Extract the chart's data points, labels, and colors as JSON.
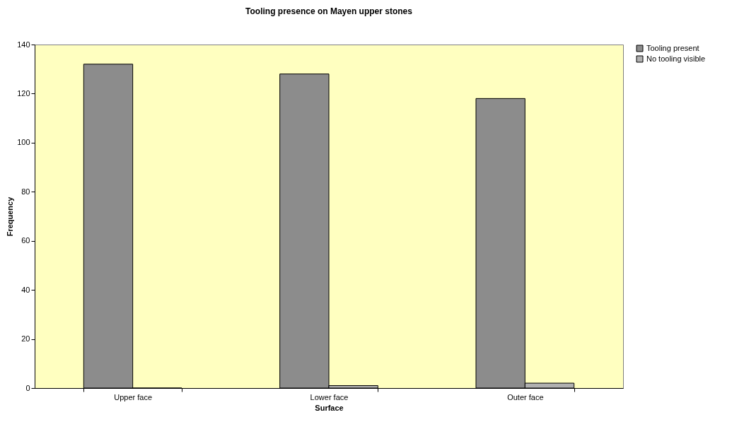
{
  "chart_data": {
    "type": "bar",
    "title": "Tooling presence on Mayen upper stones",
    "xlabel": "Surface",
    "ylabel": "Frequency",
    "categories": [
      "Upper face",
      "Lower face",
      "Outer face"
    ],
    "series": [
      {
        "name": "Tooling present",
        "color": "#8c8c8c",
        "values": [
          132,
          128,
          118
        ]
      },
      {
        "name": "No tooling visible",
        "color": "#b0b0b0",
        "values": [
          0,
          1,
          2
        ]
      }
    ],
    "ylim": [
      0,
      140
    ],
    "yticks": [
      0,
      20,
      40,
      60,
      80,
      100,
      120,
      140
    ],
    "grid": false,
    "legend": "right"
  }
}
